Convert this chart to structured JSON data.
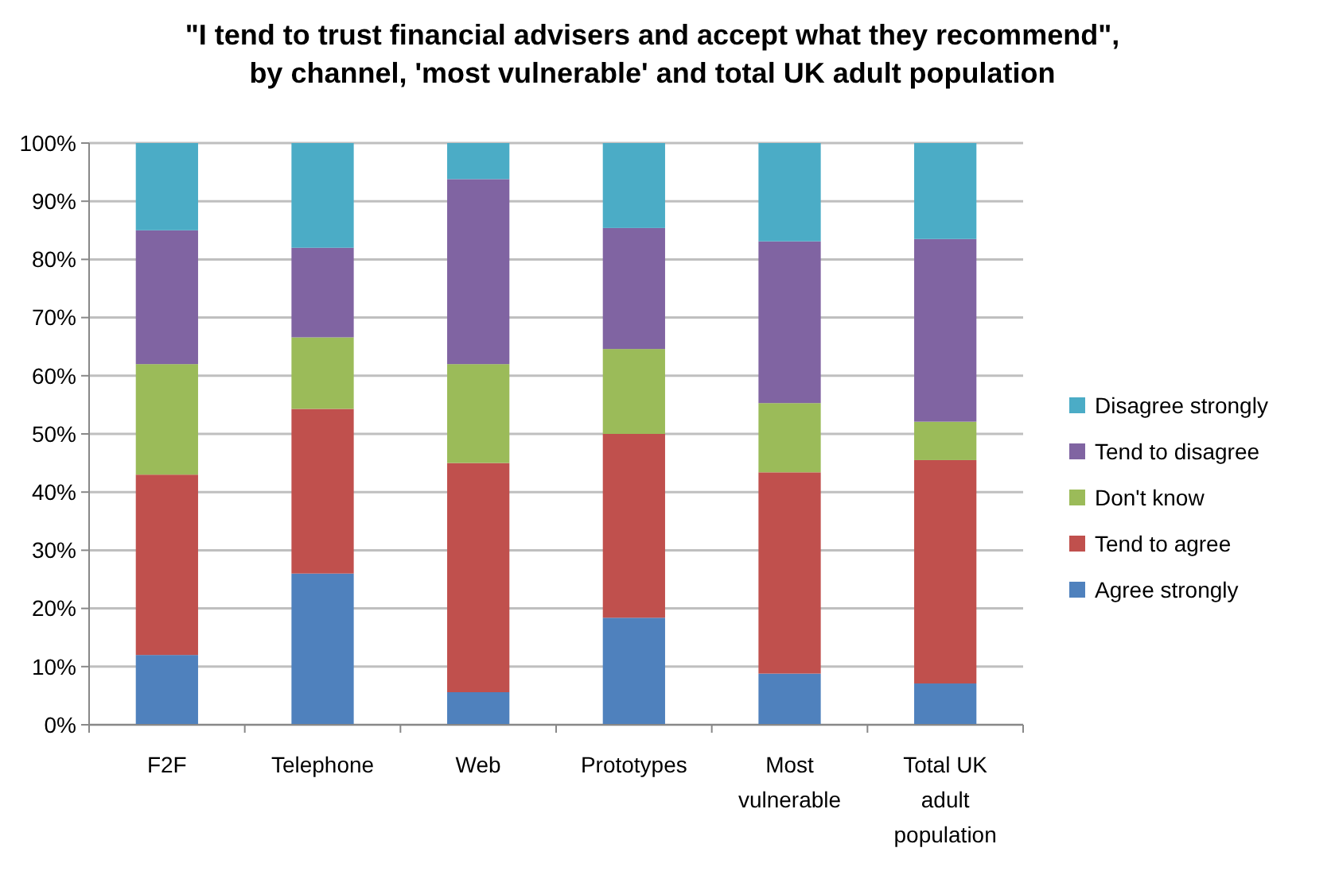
{
  "chart_data": {
    "type": "bar",
    "stacked": true,
    "title": "\"I tend to trust financial advisers and accept what they recommend\", by channel, 'most vulnerable' and total UK adult population",
    "categories": [
      "F2F",
      "Telephone",
      "Web",
      "Prototypes",
      "Most vulnerable",
      "Total UK adult population"
    ],
    "series": [
      {
        "name": "Agree strongly",
        "color": "#4f81bd",
        "values": [
          12,
          26,
          5.6,
          18.4,
          8.8,
          7.1
        ]
      },
      {
        "name": "Tend to agree",
        "color": "#c0504d",
        "values": [
          31,
          28.3,
          39.4,
          31.6,
          34.6,
          38.4
        ]
      },
      {
        "name": "Don't know",
        "color": "#9bbb59",
        "values": [
          19,
          12.3,
          17,
          14.6,
          11.9,
          6.6
        ]
      },
      {
        "name": "Tend to disagree",
        "color": "#8064a2",
        "values": [
          23,
          15.4,
          31.8,
          20.8,
          27.8,
          31.4
        ]
      },
      {
        "name": "Disagree strongly",
        "color": "#4bacc6",
        "values": [
          15,
          18,
          6.2,
          14.6,
          16.9,
          16.5
        ]
      }
    ],
    "ylim": [
      0,
      100
    ],
    "yticks": [
      {
        "value": 0,
        "label": "0%"
      },
      {
        "value": 10,
        "label": "10%"
      },
      {
        "value": 20,
        "label": "20%"
      },
      {
        "value": 30,
        "label": "30%"
      },
      {
        "value": 40,
        "label": "40%"
      },
      {
        "value": 50,
        "label": "50%"
      },
      {
        "value": 60,
        "label": "60%"
      },
      {
        "value": 70,
        "label": "70%"
      },
      {
        "value": 80,
        "label": "80%"
      },
      {
        "value": 90,
        "label": "90%"
      },
      {
        "value": 100,
        "label": "100%"
      }
    ],
    "grid": "y",
    "legend": "right"
  }
}
